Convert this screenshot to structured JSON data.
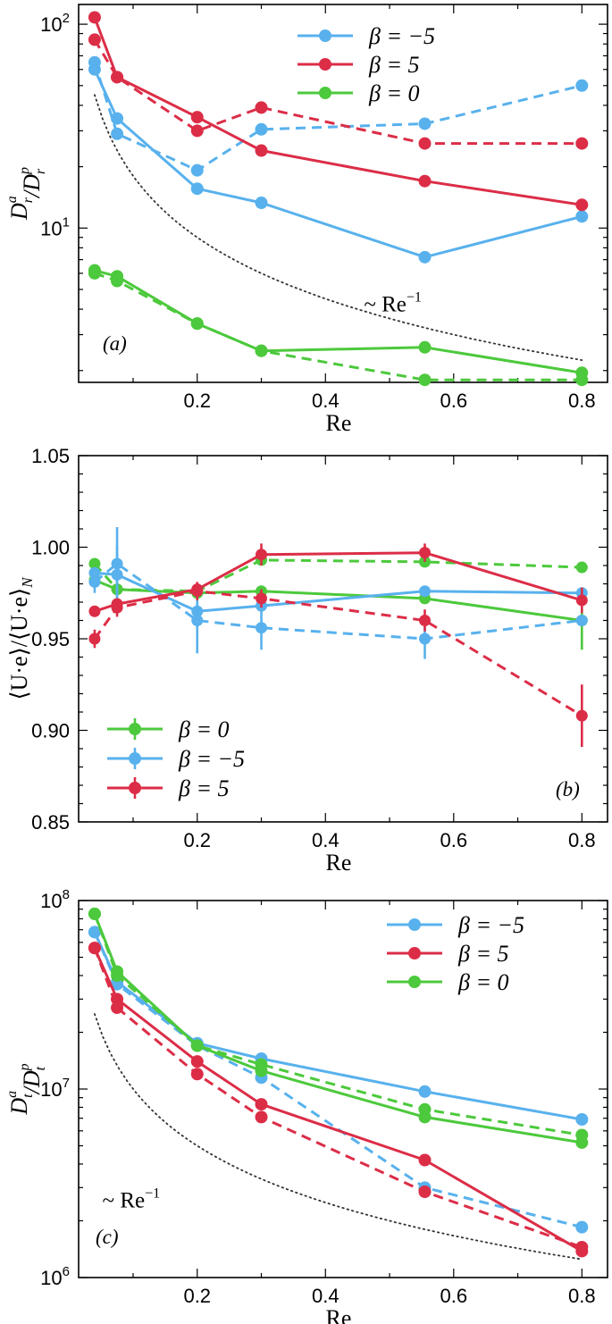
{
  "colors": {
    "blue": "#58b1ed",
    "red": "#dc2d47",
    "green": "#4cc93c",
    "ref": "#333333"
  },
  "chart_data": [
    {
      "type": "line",
      "panel_tag": "(a)",
      "yscale": "log",
      "xlabel": "Re",
      "ylabel": "D_r^a / D_r^p",
      "xlim": [
        0.015,
        0.84
      ],
      "ylim": [
        1.75,
        125
      ],
      "xticks": [
        {
          "v": 0.2,
          "label": "0.2"
        },
        {
          "v": 0.4,
          "label": "0.4"
        },
        {
          "v": 0.6,
          "label": "0.6"
        },
        {
          "v": 0.8,
          "label": "0.8"
        }
      ],
      "yticks": [
        {
          "v": 10,
          "label": "10",
          "exp": "1"
        },
        {
          "v": 100,
          "label": "10",
          "exp": "2"
        }
      ],
      "legend": {
        "position": "top-right",
        "entries": [
          {
            "label": "β = −5",
            "color": "blue"
          },
          {
            "label": "β = 5",
            "color": "red"
          },
          {
            "label": "β = 0",
            "color": "green"
          }
        ]
      },
      "annotation": {
        "text": "~ Re",
        "sup": "−1",
        "at": [
          0.46,
          3.9
        ]
      },
      "series": [
        {
          "name": "β = −5 (solid)",
          "color": "blue",
          "dash": false,
          "x": [
            0.04,
            0.075,
            0.2,
            0.3,
            0.555,
            0.8
          ],
          "y": [
            60,
            34.5,
            15.6,
            13.3,
            7.2,
            11.4
          ]
        },
        {
          "name": "β = −5 (dashed)",
          "color": "blue",
          "dash": true,
          "x": [
            0.04,
            0.075,
            0.2,
            0.3,
            0.555,
            0.8
          ],
          "y": [
            65,
            29,
            19.2,
            30.5,
            32.5,
            50
          ]
        },
        {
          "name": "β = 5 (solid)",
          "color": "red",
          "dash": false,
          "x": [
            0.04,
            0.075,
            0.2,
            0.3,
            0.555,
            0.8
          ],
          "y": [
            108,
            55,
            35,
            24,
            17,
            13
          ]
        },
        {
          "name": "β = 5 (dashed)",
          "color": "red",
          "dash": true,
          "x": [
            0.04,
            0.075,
            0.2,
            0.3,
            0.555,
            0.8
          ],
          "y": [
            84,
            55,
            30,
            39,
            26,
            26
          ]
        },
        {
          "name": "β = 0 (solid)",
          "color": "green",
          "dash": false,
          "x": [
            0.04,
            0.075,
            0.2,
            0.3,
            0.555,
            0.8
          ],
          "y": [
            6.2,
            5.8,
            3.4,
            2.5,
            2.6,
            1.95
          ]
        },
        {
          "name": "β = 0 (dashed)",
          "color": "green",
          "dash": true,
          "x": [
            0.04,
            0.075,
            0.2,
            0.3,
            0.555,
            0.8
          ],
          "y": [
            6.0,
            5.5,
            3.4,
            2.5,
            1.8,
            1.8
          ]
        }
      ],
      "reference": {
        "name": "~ Re^-1",
        "x_from": 0.04,
        "x_to": 0.8,
        "c": 1.8
      }
    },
    {
      "type": "line",
      "panel_tag": "(b)",
      "yscale": "linear",
      "xlabel": "Re",
      "ylabel": "⟨U·e⟩/⟨U·e⟩_N",
      "xlim": [
        0.015,
        0.84
      ],
      "ylim": [
        0.85,
        1.05
      ],
      "xticks": [
        {
          "v": 0.2,
          "label": "0.2"
        },
        {
          "v": 0.4,
          "label": "0.4"
        },
        {
          "v": 0.6,
          "label": "0.6"
        },
        {
          "v": 0.8,
          "label": "0.8"
        }
      ],
      "yticks": [
        {
          "v": 0.85,
          "label": "0.85"
        },
        {
          "v": 0.9,
          "label": "0.90"
        },
        {
          "v": 0.95,
          "label": "0.95"
        },
        {
          "v": 1.0,
          "label": "1.00"
        },
        {
          "v": 1.05,
          "label": "1.05"
        }
      ],
      "legend": {
        "position": "bottom-left",
        "entries": [
          {
            "label": "β = 0",
            "color": "green"
          },
          {
            "label": "β = −5",
            "color": "blue"
          },
          {
            "label": "β = 5",
            "color": "red"
          }
        ]
      },
      "series": [
        {
          "name": "β = 0 (solid)",
          "color": "green",
          "dash": false,
          "x": [
            0.04,
            0.075,
            0.2,
            0.3,
            0.555,
            0.8
          ],
          "y": [
            0.982,
            0.977,
            0.975,
            0.976,
            0.972,
            0.96
          ],
          "err": [
            0,
            0,
            0,
            0,
            0,
            0.016
          ]
        },
        {
          "name": "β = 0 (dashed)",
          "color": "green",
          "dash": true,
          "x": [
            0.04,
            0.075,
            0.2,
            0.3,
            0.555,
            0.8
          ],
          "y": [
            0.991,
            0.977,
            0.976,
            0.993,
            0.992,
            0.989
          ],
          "err": [
            0,
            0,
            0,
            0,
            0,
            0
          ]
        },
        {
          "name": "β = −5 (solid)",
          "color": "blue",
          "dash": false,
          "x": [
            0.04,
            0.075,
            0.2,
            0.3,
            0.555,
            0.8
          ],
          "y": [
            0.986,
            0.985,
            0.965,
            0.968,
            0.976,
            0.975
          ],
          "err": [
            0,
            0.016,
            0,
            0,
            0,
            0
          ]
        },
        {
          "name": "β = −5 (dashed)",
          "color": "blue",
          "dash": true,
          "x": [
            0.04,
            0.075,
            0.2,
            0.3,
            0.555,
            0.8
          ],
          "y": [
            0.981,
            0.991,
            0.96,
            0.956,
            0.95,
            0.96
          ],
          "err": [
            0.006,
            0.02,
            0.018,
            0.012,
            0.011,
            0
          ]
        },
        {
          "name": "β = 5 (solid)",
          "color": "red",
          "dash": false,
          "x": [
            0.04,
            0.075,
            0.2,
            0.3,
            0.555,
            0.8
          ],
          "y": [
            0.965,
            0.969,
            0.977,
            0.996,
            0.997,
            0.971
          ],
          "err": [
            0,
            0,
            0.004,
            0.006,
            0.005,
            0.007
          ]
        },
        {
          "name": "β = 5 (dashed)",
          "color": "red",
          "dash": true,
          "x": [
            0.04,
            0.075,
            0.2,
            0.3,
            0.555,
            0.8
          ],
          "y": [
            0.95,
            0.967,
            0.976,
            0.972,
            0.96,
            0.908
          ],
          "err": [
            0.005,
            0.005,
            0.005,
            0.005,
            0.006,
            0.017
          ]
        }
      ]
    },
    {
      "type": "line",
      "panel_tag": "(c)",
      "yscale": "log",
      "xlabel": "Re",
      "ylabel": "D_t^a / D_t^p",
      "xlim": [
        0.015,
        0.84
      ],
      "ylim": [
        1000000,
        100000000
      ],
      "xticks": [
        {
          "v": 0.2,
          "label": "0.2"
        },
        {
          "v": 0.4,
          "label": "0.4"
        },
        {
          "v": 0.6,
          "label": "0.6"
        },
        {
          "v": 0.8,
          "label": "0.8"
        }
      ],
      "yticks": [
        {
          "v": 1000000,
          "label": "10",
          "exp": "6"
        },
        {
          "v": 10000000,
          "label": "10",
          "exp": "7"
        },
        {
          "v": 100000000,
          "label": "10",
          "exp": "8"
        }
      ],
      "legend": {
        "position": "top-right",
        "entries": [
          {
            "label": "β = −5",
            "color": "blue"
          },
          {
            "label": "β = 5",
            "color": "red"
          },
          {
            "label": "β = 0",
            "color": "green"
          }
        ]
      },
      "annotation": {
        "text": "~ Re",
        "sup": "−1",
        "at": [
          0.052,
          2350000.0
        ]
      },
      "series": [
        {
          "name": "β = −5 (solid)",
          "color": "blue",
          "dash": false,
          "x": [
            0.04,
            0.075,
            0.2,
            0.3,
            0.555,
            0.8
          ],
          "y": [
            68000000.0,
            37000000.0,
            17500000.0,
            14500000.0,
            9700000.0,
            6900000.0
          ]
        },
        {
          "name": "β = −5 (dashed)",
          "color": "blue",
          "dash": true,
          "x": [
            0.04,
            0.075,
            0.2,
            0.3,
            0.555,
            0.8
          ],
          "y": [
            68000000.0,
            36000000.0,
            17000000.0,
            11500000.0,
            3000000.0,
            1850000.0
          ]
        },
        {
          "name": "β = 5 (solid)",
          "color": "red",
          "dash": false,
          "x": [
            0.04,
            0.075,
            0.2,
            0.3,
            0.555,
            0.8
          ],
          "y": [
            56000000.0,
            30000000.0,
            14000000.0,
            8300000.0,
            4200000.0,
            1380000.0
          ]
        },
        {
          "name": "β = 5 (dashed)",
          "color": "red",
          "dash": true,
          "x": [
            0.04,
            0.075,
            0.2,
            0.3,
            0.555,
            0.8
          ],
          "y": [
            56000000.0,
            27000000.0,
            12000000.0,
            7100000.0,
            2850000.0,
            1450000.0
          ]
        },
        {
          "name": "β = 0 (solid)",
          "color": "green",
          "dash": false,
          "x": [
            0.04,
            0.075,
            0.2,
            0.3,
            0.555,
            0.8
          ],
          "y": [
            85000000.0,
            42000000.0,
            17000000.0,
            12500000.0,
            7100000.0,
            5200000.0
          ]
        },
        {
          "name": "β = 0 (dashed)",
          "color": "green",
          "dash": true,
          "x": [
            0.04,
            0.075,
            0.2,
            0.3,
            0.555,
            0.8
          ],
          "y": [
            85000000.0,
            40000000.0,
            17000000.0,
            13500000.0,
            7800000.0,
            5700000.0
          ]
        }
      ],
      "reference": {
        "name": "~ Re^-1",
        "x_from": 0.04,
        "x_to": 0.8,
        "c": 1000000
      }
    }
  ]
}
